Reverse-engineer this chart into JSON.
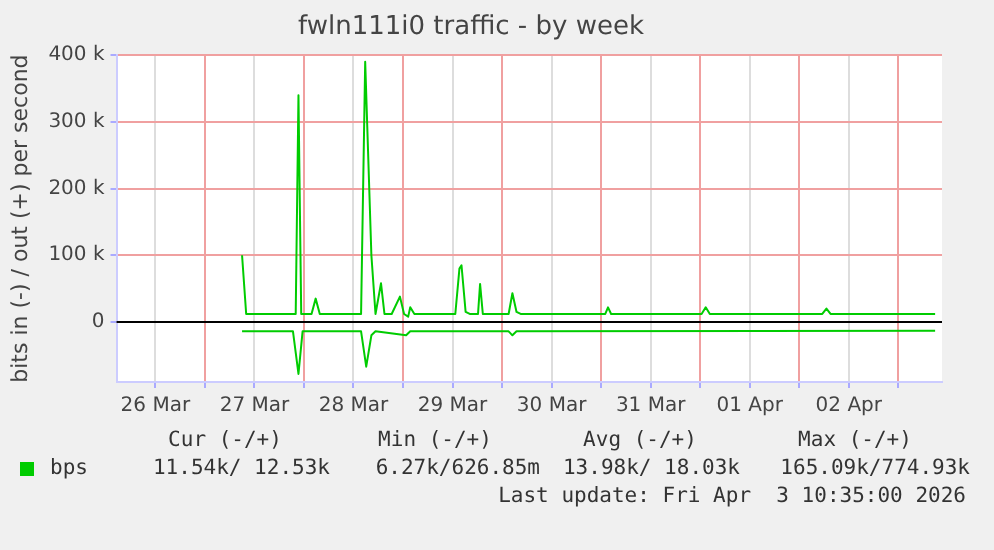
{
  "chart_data": {
    "type": "line",
    "title": "fwln111i0 traffic - by week",
    "ylabel": "bits in (-) / out (+) per second",
    "xlim": [
      "2026-03-26T02:35",
      "2026-04-03T10:35"
    ],
    "xticks": [
      {
        "value": "2026-03-26T12:00",
        "label": "26 Mar"
      },
      {
        "value": "2026-03-27T00:00",
        "label": null
      },
      {
        "value": "2026-03-27T12:00",
        "label": "27 Mar"
      },
      {
        "value": "2026-03-28T00:00",
        "label": null
      },
      {
        "value": "2026-03-28T12:00",
        "label": "28 Mar"
      },
      {
        "value": "2026-03-29T00:00",
        "label": null
      },
      {
        "value": "2026-03-29T12:00",
        "label": "29 Mar"
      },
      {
        "value": "2026-03-30T00:00",
        "label": null
      },
      {
        "value": "2026-03-30T12:00",
        "label": "30 Mar"
      },
      {
        "value": "2026-03-31T00:00",
        "label": null
      },
      {
        "value": "2026-03-31T12:00",
        "label": "31 Mar"
      },
      {
        "value": "2026-04-01T00:00",
        "label": null
      },
      {
        "value": "2026-04-01T12:00",
        "label": "01 Apr"
      },
      {
        "value": "2026-04-02T00:00",
        "label": null
      },
      {
        "value": "2026-04-02T12:00",
        "label": "02 Apr"
      },
      {
        "value": "2026-04-03T00:00",
        "label": null
      }
    ],
    "ylim": [
      -90000,
      400000
    ],
    "yticks": [
      {
        "value": 0,
        "label": "0"
      },
      {
        "value": 100000,
        "label": "100 k"
      },
      {
        "value": 200000,
        "label": "200 k"
      },
      {
        "value": 300000,
        "label": "300 k"
      },
      {
        "value": 400000,
        "label": "400 k"
      }
    ],
    "grid": true,
    "legend": "bottom",
    "marker": "none",
    "line_style": "solid",
    "ref_lines": [
      {
        "axis": "y",
        "value": 0,
        "color": "#000000"
      }
    ],
    "series": [
      {
        "name": "bps",
        "color": "#00cc00",
        "x": [
          "2026-03-27T09:00",
          "2026-03-27T10:00",
          "2026-03-27T22:00",
          "2026-03-27T22:40",
          "2026-03-27T23:20",
          "2026-03-28T01:50",
          "2026-03-28T02:50",
          "2026-03-28T03:50",
          "2026-03-28T13:50",
          "2026-03-28T14:50",
          "2026-03-28T16:20",
          "2026-03-28T17:20",
          "2026-03-28T18:40",
          "2026-03-28T19:30",
          "2026-03-28T21:15",
          "2026-03-28T23:15",
          "2026-03-29T00:15",
          "2026-03-29T01:15",
          "2026-03-29T01:45",
          "2026-03-29T02:45",
          "2026-03-29T12:40",
          "2026-03-29T13:40",
          "2026-03-29T14:10",
          "2026-03-29T15:10",
          "2026-03-29T16:10",
          "2026-03-29T18:10",
          "2026-03-29T18:40",
          "2026-03-29T19:20",
          "2026-03-30T01:35",
          "2026-03-30T02:30",
          "2026-03-30T03:30",
          "2026-03-30T04:30",
          "2026-03-31T01:00",
          "2026-03-31T01:40",
          "2026-03-31T02:25",
          "2026-04-01T00:20",
          "2026-04-01T01:20",
          "2026-04-01T02:20",
          "2026-04-02T05:35",
          "2026-04-02T06:35",
          "2026-04-02T07:35",
          "2026-04-03T08:55"
        ],
        "values": [
          100000,
          12000,
          12000,
          340000,
          12000,
          12000,
          35000,
          12000,
          12000,
          390000,
          100000,
          12000,
          58000,
          12000,
          12000,
          38000,
          12000,
          8000,
          22000,
          12000,
          12000,
          80000,
          85000,
          15000,
          12000,
          12000,
          57000,
          12000,
          12000,
          43000,
          15000,
          12000,
          12000,
          22000,
          12000,
          12000,
          22000,
          12000,
          12000,
          20000,
          12000,
          12000
        ]
      },
      {
        "color": "#00cc00",
        "x": [
          "2026-03-27T09:00",
          "2026-03-27T21:20",
          "2026-03-27T22:40",
          "2026-03-27T23:40",
          "2026-03-28T13:50",
          "2026-03-28T15:05",
          "2026-03-28T16:20",
          "2026-03-28T17:20",
          "2026-03-29T00:45",
          "2026-03-29T01:45",
          "2026-03-30T01:35",
          "2026-03-30T02:30",
          "2026-03-30T03:30",
          "2026-04-03T08:55"
        ],
        "values": [
          -14000,
          -14000,
          -78000,
          -14000,
          -14000,
          -67000,
          -20000,
          -14000,
          -20000,
          -14000,
          -14000,
          -20000,
          -14000,
          -13000
        ]
      }
    ],
    "annotations": [
      "Cur (-/+)",
      "Min (-/+)",
      "Avg (-/+)",
      "Max (-/+)",
      "11.54k/ 12.53k",
      "6.27k/626.85m",
      "13.98k/ 18.03k",
      "165.09k/774.93k",
      "Last update: Fri Apr  3 10:35:00 2026"
    ]
  }
}
